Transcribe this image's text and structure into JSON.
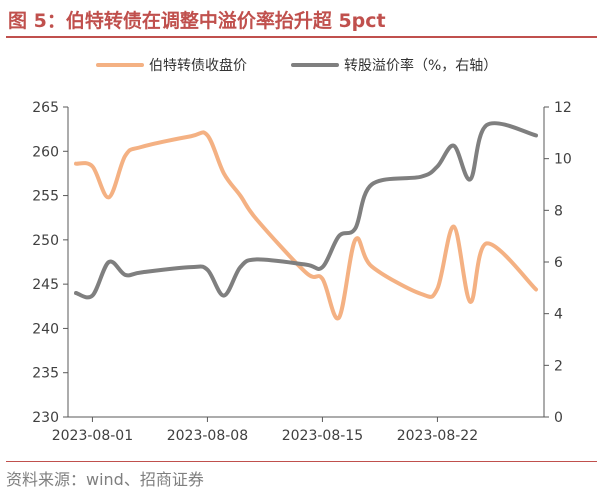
{
  "figure": {
    "title": "图 5：伯特转债在调整中溢价率抬升超 5pct",
    "source": "资料来源：wind、招商证券"
  },
  "colors": {
    "title": "#c0504d",
    "price_series": "#f4b183",
    "premium_series": "#7f7f7f",
    "axis": "#595959"
  },
  "chart_data": {
    "type": "line",
    "x_ticks": [
      "2023-08-01",
      "2023-08-08",
      "2023-08-15",
      "2023-08-22"
    ],
    "x": [
      "2023-07-31",
      "2023-08-01",
      "2023-08-02",
      "2023-08-03",
      "2023-08-04",
      "2023-08-07",
      "2023-08-08",
      "2023-08-09",
      "2023-08-10",
      "2023-08-11",
      "2023-08-14",
      "2023-08-15",
      "2023-08-16",
      "2023-08-17",
      "2023-08-18",
      "2023-08-21",
      "2023-08-22",
      "2023-08-23",
      "2023-08-24",
      "2023-08-25",
      "2023-08-28"
    ],
    "y_left": {
      "min": 230,
      "max": 265,
      "ticks": [
        230,
        235,
        240,
        245,
        250,
        255,
        260,
        265
      ]
    },
    "y_right": {
      "min": 0,
      "max": 12,
      "ticks": [
        0,
        2,
        4,
        6,
        8,
        10,
        12
      ]
    },
    "legend_position": "top",
    "grid": false,
    "series": [
      {
        "name": "伯特转债收盘价",
        "axis": "left",
        "values": [
          258.6,
          258.3,
          254.8,
          259.5,
          260.5,
          261.7,
          261.8,
          257.5,
          255.0,
          252.3,
          246.3,
          245.6,
          241.2,
          250.0,
          247.0,
          243.9,
          244.5,
          251.5,
          243.0,
          249.6,
          244.4
        ]
      },
      {
        "name": "转股溢价率（%，右轴）",
        "axis": "right",
        "values": [
          4.8,
          4.7,
          6.0,
          5.5,
          5.6,
          5.8,
          5.7,
          4.7,
          5.8,
          6.1,
          5.9,
          5.8,
          7.0,
          7.3,
          9.0,
          9.3,
          9.7,
          10.5,
          9.2,
          11.3,
          10.9
        ]
      }
    ]
  }
}
